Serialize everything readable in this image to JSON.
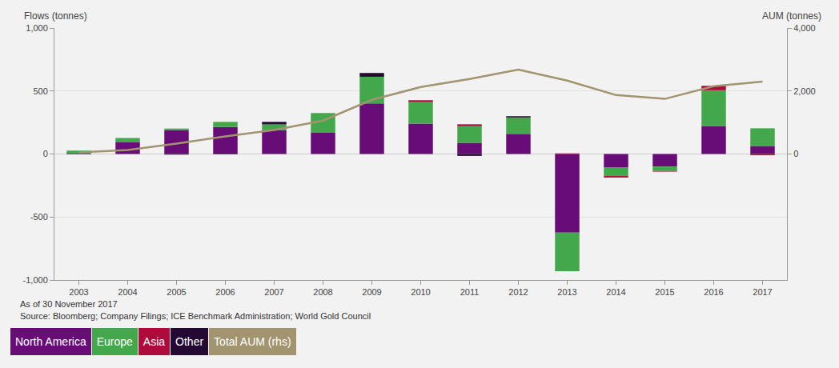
{
  "chart_data": {
    "type": "bar",
    "stacked": true,
    "grid": true,
    "legend": "bottom-left",
    "y_label": "Flows (tonnes)",
    "y2_label": "AUM (tonnes)",
    "notes": [
      "As of 30 November 2017",
      "Source: Bloomberg; Company Filings; ICE Benchmark Administration; World Gold Council"
    ],
    "categories": [
      "2003",
      "2004",
      "2005",
      "2006",
      "2007",
      "2008",
      "2009",
      "2010",
      "2011",
      "2012",
      "2013",
      "2014",
      "2015",
      "2016",
      "2017"
    ],
    "ylim": [
      -1000,
      1000
    ],
    "yticks": [
      {
        "value": -1000,
        "label": "-1,000"
      },
      -500,
      0,
      500,
      {
        "value": 1000,
        "label": "1,000"
      }
    ],
    "y2lim": [
      -4000,
      4000
    ],
    "y2ticks": [
      0,
      {
        "value": 2000,
        "label": "2,000"
      },
      {
        "value": 4000,
        "label": "4,000"
      }
    ],
    "series": [
      {
        "name": "North America",
        "color": "#680c78",
        "values": [
          2,
          92,
          190,
          215,
          190,
          172,
          401,
          242,
          89,
          160,
          -624,
          -105,
          -100,
          223,
          64
        ]
      },
      {
        "name": "Europe",
        "color": "#43a84b",
        "values": [
          25,
          35,
          12,
          40,
          45,
          153,
          212,
          170,
          132,
          130,
          -306,
          -70,
          -35,
          283,
          140
        ]
      },
      {
        "name": "Asia",
        "color": "#ae0a3c",
        "values": [
          0,
          0,
          0,
          0,
          0,
          0,
          0,
          15,
          15,
          0,
          5,
          -12,
          -5,
          35,
          -10
        ]
      },
      {
        "name": "Other",
        "color": "#240a33",
        "values": [
          -3,
          0,
          -5,
          -3,
          20,
          0,
          30,
          0,
          -15,
          10,
          0,
          0,
          0,
          0,
          0
        ]
      },
      {
        "name": "Total AUM (rhs)",
        "color": "#a1946f",
        "type": "line",
        "axis": "y2",
        "values": [
          50,
          125,
          330,
          560,
          760,
          1060,
          1720,
          2125,
          2380,
          2680,
          2330,
          1870,
          1750,
          2150,
          2300
        ]
      }
    ]
  }
}
